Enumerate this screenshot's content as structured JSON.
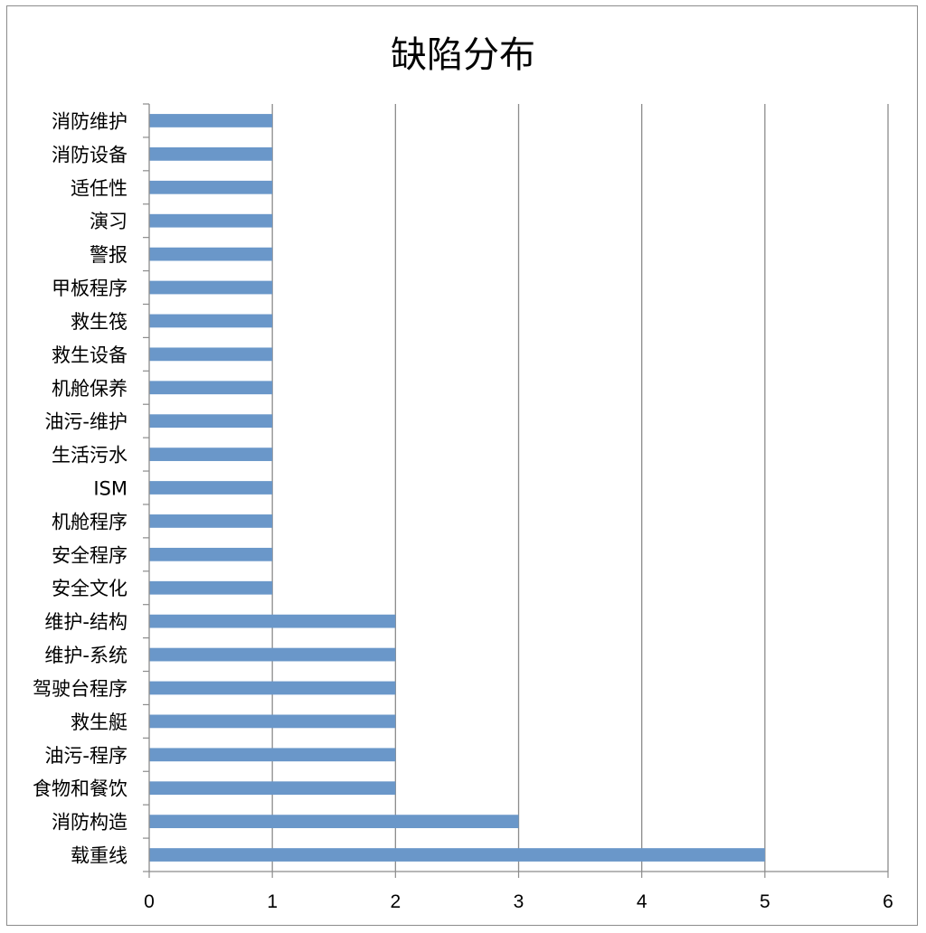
{
  "chart_data": {
    "type": "bar",
    "orientation": "horizontal",
    "title": "缺陷分布",
    "xlabel": "",
    "ylabel": "",
    "xlim": [
      0,
      6
    ],
    "x_ticks": [
      0,
      1,
      2,
      3,
      4,
      5,
      6
    ],
    "grid": "vertical",
    "legend": "none",
    "bar_color": "#6a97c9",
    "categories": [
      "消防维护",
      "消防设备",
      "适任性",
      "演习",
      "警报",
      "甲板程序",
      "救生筏",
      "救生设备",
      "机舱保养",
      "油污-维护",
      "生活污水",
      "ISM",
      "机舱程序",
      "安全程序",
      "安全文化",
      "维护-结构",
      "维护-系统",
      "驾驶台程序",
      "救生艇",
      "油污-程序",
      "食物和餐饮",
      "消防构造",
      "载重线"
    ],
    "values": [
      1,
      1,
      1,
      1,
      1,
      1,
      1,
      1,
      1,
      1,
      1,
      1,
      1,
      1,
      1,
      2,
      2,
      2,
      2,
      2,
      2,
      3,
      5
    ]
  }
}
